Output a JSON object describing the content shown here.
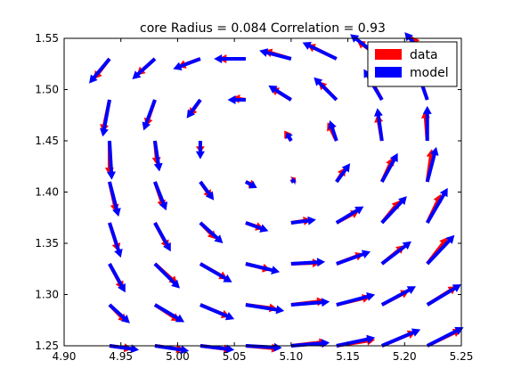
{
  "chart_data": {
    "type": "quiver",
    "title": "core Radius = 0.084 Correlation = 0.93",
    "xlim": [
      4.9,
      5.25
    ],
    "ylim": [
      1.25,
      1.55
    ],
    "x_ticks": [
      "4.90",
      "4.95",
      "5.00",
      "5.05",
      "5.10",
      "5.15",
      "5.20",
      "5.25"
    ],
    "y_ticks": [
      "1.25",
      "1.30",
      "1.35",
      "1.40",
      "1.45",
      "1.50",
      "1.55"
    ],
    "grid": false,
    "legend_position": "top-right",
    "series": [
      {
        "name": "data",
        "color": "#ff0000"
      },
      {
        "name": "model",
        "color": "#0000ff"
      }
    ],
    "x": [
      4.94,
      4.98,
      5.02,
      5.06,
      5.1,
      5.14,
      5.18,
      5.22
    ],
    "y": [
      1.25,
      1.29,
      1.33,
      1.37,
      1.41,
      1.45,
      1.49,
      1.53
    ],
    "data_vectors": [
      [
        [
          0.02,
          -0.003
        ],
        [
          0.026,
          -0.004
        ],
        [
          0.028,
          -0.004
        ],
        [
          0.03,
          -0.003
        ],
        [
          0.032,
          0.004
        ],
        [
          0.034,
          0.006
        ],
        [
          0.03,
          0.014
        ],
        [
          0.03,
          0.016
        ]
      ],
      [
        [
          0.015,
          -0.017
        ],
        [
          0.022,
          -0.016
        ],
        [
          0.026,
          -0.012
        ],
        [
          0.028,
          -0.004
        ],
        [
          0.03,
          0.004
        ],
        [
          0.03,
          0.008
        ],
        [
          0.024,
          0.014
        ],
        [
          0.026,
          0.018
        ]
      ],
      [
        [
          0.012,
          -0.025
        ],
        [
          0.02,
          -0.02
        ],
        [
          0.024,
          -0.015
        ],
        [
          0.022,
          -0.006
        ],
        [
          0.026,
          0.001
        ],
        [
          0.024,
          0.01
        ],
        [
          0.02,
          0.018
        ],
        [
          0.018,
          0.026
        ]
      ],
      [
        [
          0.008,
          -0.028
        ],
        [
          0.012,
          -0.025
        ],
        [
          0.014,
          -0.016
        ],
        [
          0.016,
          -0.006
        ],
        [
          0.018,
          0.003
        ],
        [
          0.02,
          0.012
        ],
        [
          0.016,
          0.022
        ],
        [
          0.012,
          0.028
        ]
      ],
      [
        [
          0.006,
          -0.03
        ],
        [
          0.008,
          -0.026
        ],
        [
          0.01,
          -0.016
        ],
        [
          0.008,
          -0.004
        ],
        [
          0.004,
          0.004
        ],
        [
          0.008,
          0.014
        ],
        [
          0.01,
          0.024
        ],
        [
          0.004,
          0.032
        ]
      ],
      [
        [
          0.0,
          -0.034
        ],
        [
          0.002,
          -0.024
        ],
        [
          0.0,
          -0.012
        ],
        [
          0.0,
          0.0
        ],
        [
          -0.006,
          0.01
        ],
        [
          -0.008,
          0.018
        ],
        [
          -0.004,
          0.026
        ],
        [
          -0.002,
          0.03
        ]
      ],
      [
        [
          -0.006,
          -0.032
        ],
        [
          -0.008,
          -0.026
        ],
        [
          -0.01,
          -0.016
        ],
        [
          -0.012,
          0.002
        ],
        [
          -0.018,
          0.012
        ],
        [
          -0.016,
          0.018
        ],
        [
          -0.012,
          0.024
        ],
        [
          -0.008,
          0.026
        ]
      ],
      [
        [
          -0.014,
          -0.02
        ],
        [
          -0.016,
          -0.016
        ],
        [
          -0.02,
          -0.008
        ],
        [
          -0.024,
          0.0
        ],
        [
          -0.024,
          0.008
        ],
        [
          -0.026,
          0.014
        ],
        [
          -0.022,
          0.018
        ],
        [
          -0.014,
          0.022
        ]
      ]
    ],
    "model_vectors": [
      [
        [
          0.026,
          -0.004
        ],
        [
          0.03,
          -0.005
        ],
        [
          0.03,
          -0.004
        ],
        [
          0.032,
          -0.002
        ],
        [
          0.034,
          0.003
        ],
        [
          0.034,
          0.008
        ],
        [
          0.034,
          0.016
        ],
        [
          0.032,
          0.018
        ]
      ],
      [
        [
          0.018,
          -0.018
        ],
        [
          0.026,
          -0.017
        ],
        [
          0.03,
          -0.014
        ],
        [
          0.034,
          -0.006
        ],
        [
          0.034,
          0.003
        ],
        [
          0.034,
          0.01
        ],
        [
          0.03,
          0.018
        ],
        [
          0.03,
          0.02
        ]
      ],
      [
        [
          0.014,
          -0.028
        ],
        [
          0.022,
          -0.024
        ],
        [
          0.028,
          -0.018
        ],
        [
          0.03,
          -0.008
        ],
        [
          0.03,
          0.002
        ],
        [
          0.03,
          0.012
        ],
        [
          0.026,
          0.022
        ],
        [
          0.024,
          0.028
        ]
      ],
      [
        [
          0.01,
          -0.034
        ],
        [
          0.014,
          -0.028
        ],
        [
          0.02,
          -0.02
        ],
        [
          0.02,
          -0.008
        ],
        [
          0.022,
          0.003
        ],
        [
          0.024,
          0.016
        ],
        [
          0.022,
          0.026
        ],
        [
          0.018,
          0.034
        ]
      ],
      [
        [
          0.008,
          -0.034
        ],
        [
          0.01,
          -0.028
        ],
        [
          0.012,
          -0.018
        ],
        [
          0.01,
          -0.006
        ],
        [
          0.004,
          0.002
        ],
        [
          0.012,
          0.018
        ],
        [
          0.014,
          0.028
        ],
        [
          0.008,
          0.034
        ]
      ],
      [
        [
          0.002,
          -0.038
        ],
        [
          0.004,
          -0.03
        ],
        [
          0.0,
          -0.018
        ],
        [
          0.0,
          0.0
        ],
        [
          -0.004,
          0.008
        ],
        [
          -0.006,
          0.02
        ],
        [
          -0.004,
          0.032
        ],
        [
          0.0,
          0.034
        ]
      ],
      [
        [
          -0.006,
          -0.036
        ],
        [
          -0.01,
          -0.03
        ],
        [
          -0.012,
          -0.018
        ],
        [
          -0.016,
          0.0
        ],
        [
          -0.02,
          0.014
        ],
        [
          -0.02,
          0.022
        ],
        [
          -0.016,
          0.03
        ],
        [
          -0.01,
          0.032
        ]
      ],
      [
        [
          -0.018,
          -0.024
        ],
        [
          -0.02,
          -0.02
        ],
        [
          -0.024,
          -0.01
        ],
        [
          -0.028,
          0.0
        ],
        [
          -0.028,
          0.008
        ],
        [
          -0.03,
          0.016
        ],
        [
          -0.028,
          0.024
        ],
        [
          -0.02,
          0.026
        ]
      ]
    ]
  }
}
